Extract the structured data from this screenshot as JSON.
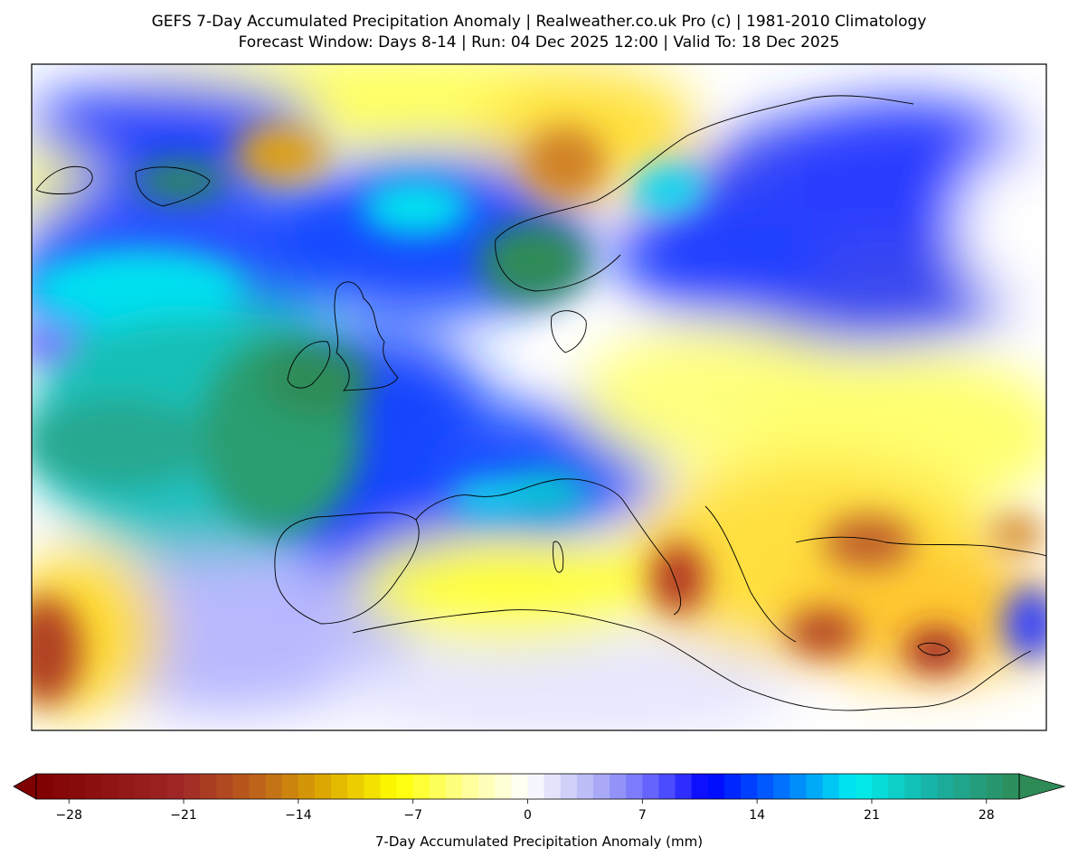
{
  "title_line1": "GEFS 7-Day Accumulated Precipitation Anomaly | Realweather.co.uk Pro (c) | 1981-2010 Climatology",
  "title_line2": "Forecast Window: Days 8-14 | Run: 04 Dec 2025 12:00 | Valid To: 18 Dec 2025",
  "colorbar": {
    "label": "7-Day Accumulated Precipitation Anomaly (mm)",
    "min": -30,
    "max": 30,
    "step": 1,
    "ticks": [
      "−28",
      "−21",
      "−14",
      "−7",
      "0",
      "7",
      "14",
      "21",
      "28"
    ],
    "tick_values": [
      -28,
      -21,
      -14,
      -7,
      0,
      7,
      14,
      21,
      28
    ],
    "color_stops": [
      {
        "v": -30,
        "c": "#7f0000"
      },
      {
        "v": -21,
        "c": "#a02828"
      },
      {
        "v": -16,
        "c": "#c06a18"
      },
      {
        "v": -12,
        "c": "#e0b000"
      },
      {
        "v": -8,
        "c": "#ffff00"
      },
      {
        "v": -4,
        "c": "#ffff90"
      },
      {
        "v": 0,
        "c": "#ffffff"
      },
      {
        "v": 4,
        "c": "#b4b4f6"
      },
      {
        "v": 8,
        "c": "#5a5aff"
      },
      {
        "v": 11,
        "c": "#0000ff"
      },
      {
        "v": 15,
        "c": "#0064ff"
      },
      {
        "v": 20,
        "c": "#00f0f0"
      },
      {
        "v": 25,
        "c": "#1aaea0"
      },
      {
        "v": 30,
        "c": "#2e8b57"
      }
    ]
  }
}
